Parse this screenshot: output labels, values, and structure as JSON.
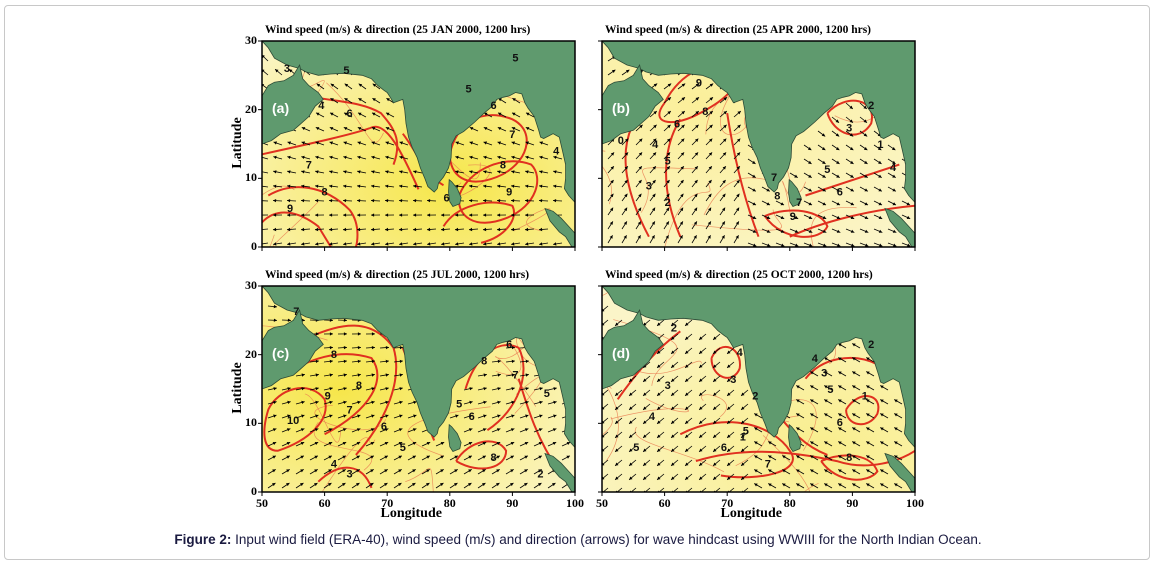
{
  "figure": {
    "caption_label": "Figure 2:",
    "caption_text": " Input wind field (ERA-40), wind speed (m/s) and direction (arrows) for wave hindcast using WWIII for the North Indian Ocean."
  },
  "axes": {
    "ylabel": "Latitude",
    "xlabel": "Longitude",
    "yticks": [
      "30",
      "20",
      "10",
      "0"
    ],
    "xticks": [
      "50",
      "60",
      "70",
      "80",
      "90",
      "100"
    ],
    "xticks_d": [
      "50",
      "60",
      "70",
      "80",
      "90",
      "100"
    ]
  },
  "panels": [
    {
      "id": "a",
      "label": "(a)",
      "title": "Wind speed (m/s) & direction (25 JAN 2000, 1200 hrs)",
      "contour_labels": [
        "3",
        "4",
        "5",
        "6",
        "7",
        "8",
        "9",
        "5",
        "6",
        "7",
        "8",
        "9",
        "5",
        "4",
        "6"
      ]
    },
    {
      "id": "b",
      "label": "(b)",
      "title": "Wind speed (m/s) & direction (25 APR 2000, 1200 hrs)",
      "contour_labels": [
        "9",
        "8",
        "6",
        "5",
        "4",
        "3",
        "2",
        "0",
        "7",
        "8",
        "9",
        "7",
        "6",
        "5",
        "4",
        "3",
        "2",
        "1"
      ]
    },
    {
      "id": "c",
      "label": "(c)",
      "title": "Wind speed (m/s) & direction (25 JUL 2000, 1200 hrs)",
      "contour_labels": [
        "7",
        "8",
        "9",
        "10",
        "8",
        "6",
        "7",
        "5",
        "4",
        "3",
        "6",
        "7",
        "8",
        "6",
        "5",
        "8",
        "5",
        "2"
      ]
    },
    {
      "id": "d",
      "label": "(d)",
      "title": "Wind speed (m/s) & direction (25 OCT 2000, 1200 hrs)",
      "contour_labels": [
        "2",
        "3",
        "4",
        "5",
        "3",
        "2",
        "1",
        "4",
        "5",
        "6",
        "7",
        "8",
        "6",
        "5",
        "4",
        "3",
        "2",
        "1"
      ]
    }
  ],
  "colors": {
    "land": "#5f9a6e",
    "sea_high": "#f6e64a",
    "sea_low": "#fbf5c8",
    "contour": "#e03020",
    "arrow": "#000000"
  }
}
